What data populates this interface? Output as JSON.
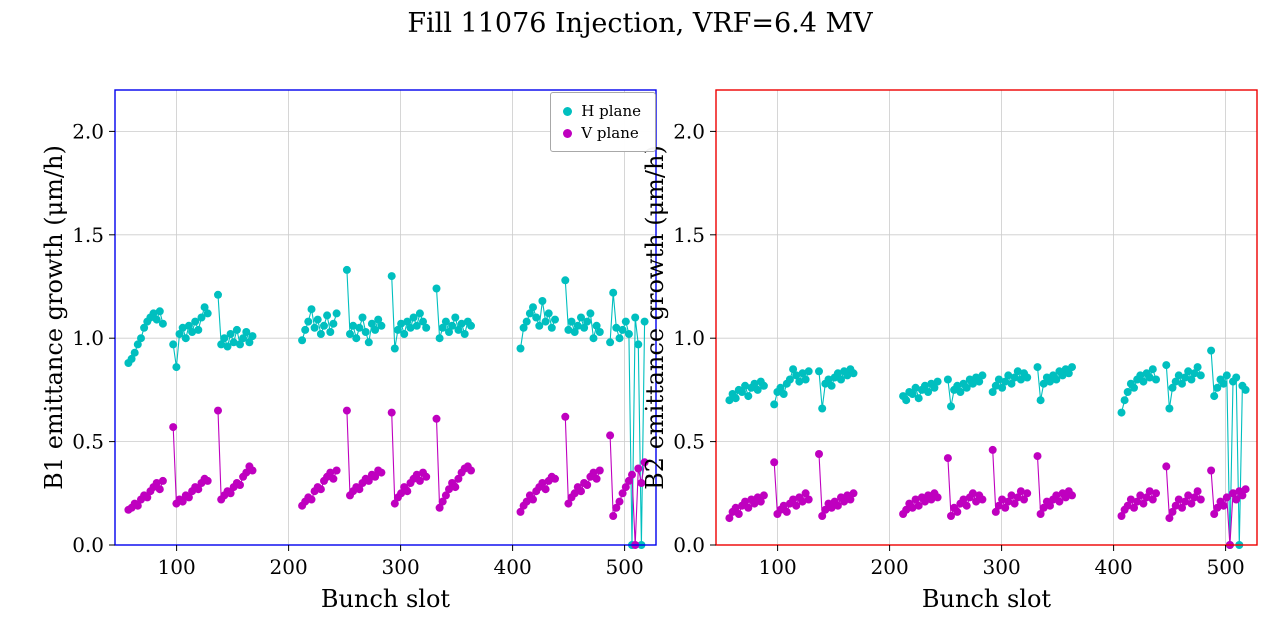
{
  "page": {
    "title": "Fill 11076 Injection, VRF=6.4 MV"
  },
  "colors": {
    "h_plane": "#00bfbf",
    "v_plane": "#bf00bf",
    "b1_border": "#0000ee",
    "b2_border": "#ee0000",
    "grid": "#cccccc"
  },
  "legend": {
    "items": [
      {
        "label": "H plane",
        "color": "#00bfbf"
      },
      {
        "label": "V plane",
        "color": "#bf00bf"
      }
    ]
  },
  "chart_data": [
    {
      "type": "scatter",
      "name": "B1",
      "xlabel": "Bunch slot",
      "ylabel": "B1 emittance growth (μm/h)",
      "xlim": [
        45,
        528
      ],
      "ylim": [
        0,
        2.2
      ],
      "xticks": [
        100,
        200,
        300,
        400,
        500
      ],
      "yticks": [
        0,
        0.5,
        1.0,
        1.5,
        2.0
      ],
      "grid": true,
      "legend": true,
      "border_color": "#0000ee",
      "batch_starts": [
        57,
        97,
        137,
        212,
        252,
        292,
        332,
        407,
        447,
        487
      ],
      "dx": 2.8,
      "series": [
        {
          "name": "H plane",
          "color": "#00bfbf",
          "y_batches": [
            [
              0.88,
              0.9,
              0.93,
              0.97,
              1.0,
              1.05,
              1.08,
              1.1,
              1.12,
              1.09,
              1.13,
              1.07
            ],
            [
              0.97,
              0.86,
              1.02,
              1.05,
              1.0,
              1.06,
              1.03,
              1.08,
              1.04,
              1.1,
              1.15,
              1.12
            ],
            [
              1.21,
              0.97,
              1.0,
              0.96,
              1.02,
              0.98,
              1.04,
              0.97,
              1.0,
              1.03,
              0.98,
              1.01
            ],
            [
              0.99,
              1.04,
              1.08,
              1.14,
              1.05,
              1.09,
              1.02,
              1.06,
              1.11,
              1.03,
              1.07,
              1.12
            ],
            [
              1.33,
              1.02,
              1.06,
              1.0,
              1.05,
              1.1,
              1.03,
              0.98,
              1.07,
              1.04,
              1.09,
              1.06
            ],
            [
              1.3,
              0.95,
              1.04,
              1.07,
              1.02,
              1.08,
              1.05,
              1.1,
              1.06,
              1.12,
              1.08,
              1.05
            ],
            [
              1.24,
              1.0,
              1.05,
              1.08,
              1.03,
              1.06,
              1.1,
              1.04,
              1.07,
              1.02,
              1.08,
              1.06
            ],
            [
              0.95,
              1.05,
              1.08,
              1.12,
              1.15,
              1.1,
              1.06,
              1.18,
              1.08,
              1.12,
              1.05,
              1.09
            ],
            [
              1.28,
              1.04,
              1.08,
              1.03,
              1.06,
              1.1,
              1.05,
              1.08,
              1.12,
              1.0,
              1.06,
              1.03
            ],
            [
              0.98,
              1.22,
              1.05,
              1.0,
              1.04,
              1.08,
              1.02,
              0.0,
              1.1,
              0.97,
              0.0,
              1.08
            ]
          ]
        },
        {
          "name": "V plane",
          "color": "#bf00bf",
          "y_batches": [
            [
              0.17,
              0.18,
              0.2,
              0.19,
              0.22,
              0.24,
              0.23,
              0.26,
              0.28,
              0.3,
              0.27,
              0.31
            ],
            [
              0.57,
              0.2,
              0.22,
              0.21,
              0.24,
              0.23,
              0.26,
              0.28,
              0.27,
              0.3,
              0.32,
              0.31
            ],
            [
              0.65,
              0.22,
              0.24,
              0.26,
              0.25,
              0.28,
              0.3,
              0.29,
              0.33,
              0.35,
              0.38,
              0.36
            ],
            [
              0.19,
              0.21,
              0.23,
              0.22,
              0.26,
              0.28,
              0.27,
              0.31,
              0.33,
              0.35,
              0.32,
              0.36
            ],
            [
              0.65,
              0.24,
              0.26,
              0.28,
              0.27,
              0.3,
              0.32,
              0.31,
              0.34,
              0.33,
              0.36,
              0.35
            ],
            [
              0.64,
              0.2,
              0.23,
              0.25,
              0.28,
              0.26,
              0.3,
              0.32,
              0.34,
              0.31,
              0.35,
              0.33
            ],
            [
              0.61,
              0.18,
              0.21,
              0.24,
              0.27,
              0.3,
              0.28,
              0.32,
              0.35,
              0.37,
              0.38,
              0.36
            ],
            [
              0.16,
              0.19,
              0.21,
              0.24,
              0.22,
              0.26,
              0.28,
              0.3,
              0.27,
              0.31,
              0.33,
              0.32
            ],
            [
              0.62,
              0.2,
              0.23,
              0.25,
              0.28,
              0.26,
              0.3,
              0.29,
              0.33,
              0.35,
              0.32,
              0.36
            ],
            [
              0.53,
              0.14,
              0.18,
              0.21,
              0.25,
              0.28,
              0.31,
              0.34,
              0.0,
              0.37,
              0.3,
              0.4
            ]
          ]
        }
      ]
    },
    {
      "type": "scatter",
      "name": "B2",
      "xlabel": "Bunch slot",
      "ylabel": "B2 emittance growth (μm/h)",
      "xlim": [
        45,
        528
      ],
      "ylim": [
        0,
        2.2
      ],
      "xticks": [
        100,
        200,
        300,
        400,
        500
      ],
      "yticks": [
        0,
        0.5,
        1.0,
        1.5,
        2.0
      ],
      "grid": true,
      "legend": false,
      "border_color": "#ee0000",
      "batch_starts": [
        57,
        97,
        137,
        212,
        252,
        292,
        332,
        407,
        447,
        487
      ],
      "dx": 2.8,
      "series": [
        {
          "name": "H plane",
          "color": "#00bfbf",
          "y_batches": [
            [
              0.7,
              0.73,
              0.71,
              0.75,
              0.74,
              0.77,
              0.72,
              0.76,
              0.78,
              0.75,
              0.79,
              0.77
            ],
            [
              0.68,
              0.74,
              0.76,
              0.73,
              0.78,
              0.8,
              0.85,
              0.82,
              0.79,
              0.83,
              0.8,
              0.84
            ],
            [
              0.84,
              0.66,
              0.78,
              0.8,
              0.77,
              0.81,
              0.83,
              0.8,
              0.84,
              0.82,
              0.85,
              0.83
            ],
            [
              0.72,
              0.7,
              0.74,
              0.73,
              0.76,
              0.71,
              0.75,
              0.77,
              0.74,
              0.78,
              0.76,
              0.79
            ],
            [
              0.8,
              0.67,
              0.75,
              0.77,
              0.74,
              0.78,
              0.76,
              0.8,
              0.78,
              0.81,
              0.79,
              0.82
            ],
            [
              0.74,
              0.77,
              0.8,
              0.76,
              0.79,
              0.82,
              0.78,
              0.81,
              0.84,
              0.8,
              0.83,
              0.81
            ],
            [
              0.86,
              0.7,
              0.78,
              0.81,
              0.79,
              0.82,
              0.8,
              0.84,
              0.82,
              0.85,
              0.83,
              0.86
            ],
            [
              0.64,
              0.7,
              0.74,
              0.78,
              0.76,
              0.8,
              0.82,
              0.79,
              0.83,
              0.81,
              0.85,
              0.8
            ],
            [
              0.87,
              0.66,
              0.76,
              0.79,
              0.82,
              0.78,
              0.81,
              0.84,
              0.8,
              0.83,
              0.86,
              0.82
            ],
            [
              0.94,
              0.72,
              0.76,
              0.8,
              0.78,
              0.82,
              0.0,
              0.79,
              0.81,
              0.0,
              0.77,
              0.75
            ]
          ]
        },
        {
          "name": "V plane",
          "color": "#bf00bf",
          "y_batches": [
            [
              0.13,
              0.16,
              0.18,
              0.15,
              0.19,
              0.21,
              0.18,
              0.22,
              0.2,
              0.23,
              0.21,
              0.24
            ],
            [
              0.4,
              0.15,
              0.17,
              0.19,
              0.16,
              0.2,
              0.22,
              0.19,
              0.23,
              0.21,
              0.25,
              0.22
            ],
            [
              0.44,
              0.14,
              0.17,
              0.2,
              0.18,
              0.21,
              0.19,
              0.23,
              0.21,
              0.24,
              0.22,
              0.25
            ],
            [
              0.15,
              0.17,
              0.2,
              0.18,
              0.22,
              0.19,
              0.23,
              0.21,
              0.24,
              0.22,
              0.25,
              0.23
            ],
            [
              0.42,
              0.14,
              0.18,
              0.16,
              0.2,
              0.22,
              0.19,
              0.23,
              0.25,
              0.21,
              0.24,
              0.22
            ],
            [
              0.46,
              0.16,
              0.19,
              0.22,
              0.18,
              0.21,
              0.24,
              0.2,
              0.23,
              0.26,
              0.22,
              0.25
            ],
            [
              0.43,
              0.15,
              0.18,
              0.21,
              0.19,
              0.22,
              0.24,
              0.21,
              0.25,
              0.23,
              0.26,
              0.24
            ],
            [
              0.14,
              0.17,
              0.19,
              0.22,
              0.18,
              0.21,
              0.24,
              0.2,
              0.23,
              0.26,
              0.22,
              0.25
            ],
            [
              0.38,
              0.13,
              0.16,
              0.19,
              0.22,
              0.18,
              0.21,
              0.24,
              0.2,
              0.23,
              0.26,
              0.22
            ],
            [
              0.36,
              0.15,
              0.18,
              0.21,
              0.19,
              0.23,
              0.0,
              0.25,
              0.22,
              0.26,
              0.24,
              0.27
            ]
          ]
        }
      ]
    }
  ]
}
